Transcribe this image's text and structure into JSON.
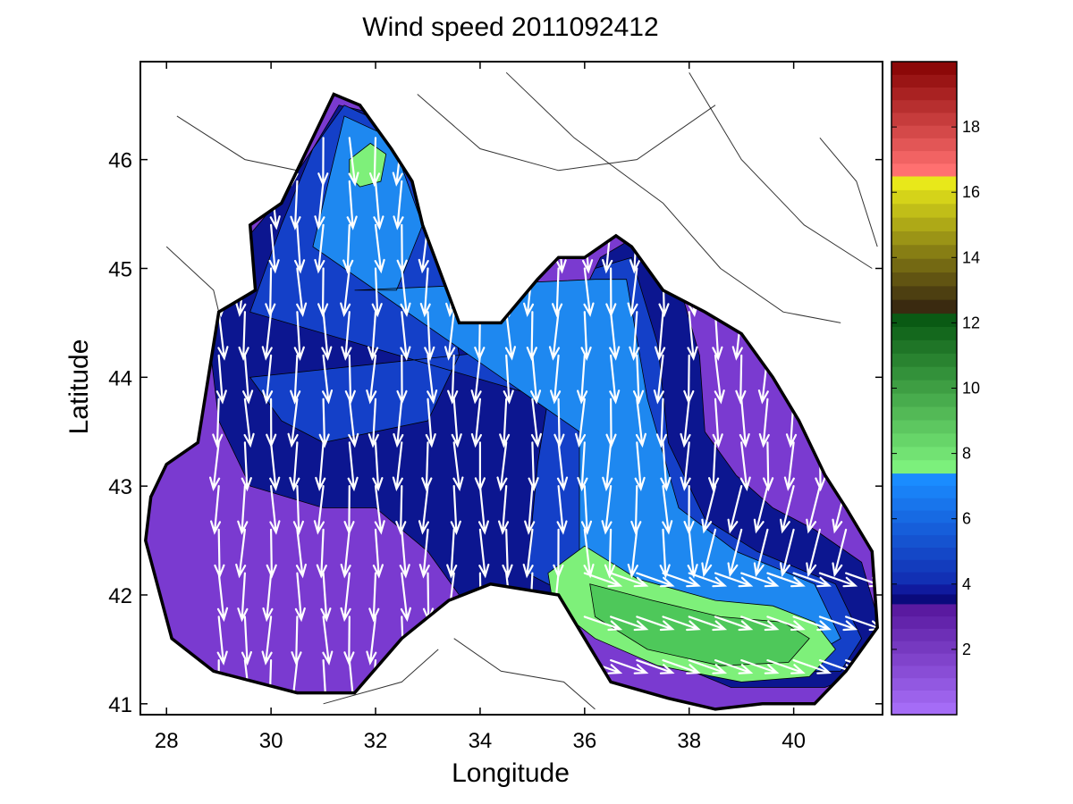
{
  "chart_data": {
    "type": "heatmap",
    "title": "Wind speed 2011092412",
    "xlabel": "Longitude",
    "ylabel": "Latitude",
    "xlim": [
      27.5,
      41.7
    ],
    "ylim": [
      40.9,
      46.9
    ],
    "xticks": [
      28,
      30,
      32,
      34,
      36,
      38,
      40
    ],
    "yticks": [
      41,
      42,
      43,
      44,
      45,
      46
    ],
    "colorbar": {
      "range": [
        0,
        20
      ],
      "ticks": [
        2,
        4,
        6,
        8,
        10,
        12,
        14,
        16,
        18
      ],
      "segments": [
        {
          "from": 0,
          "to": 3.4,
          "from_color": "#a56cf6",
          "to_color": "#5a1aa0"
        },
        {
          "from": 3.4,
          "to": 4.0,
          "from_color": "#0a0a7c",
          "to_color": "#101a9e"
        },
        {
          "from": 4.0,
          "to": 7.4,
          "from_color": "#1230b4",
          "to_color": "#1a8cff"
        },
        {
          "from": 7.4,
          "to": 12.3,
          "from_color": "#7cf07c",
          "to_color": "#0a5a14"
        },
        {
          "from": 12.3,
          "to": 16.5,
          "from_color": "#3a2a10",
          "to_color": "#e8e81a"
        },
        {
          "from": 16.5,
          "to": 20,
          "from_color": "#ff7070",
          "to_color": "#8c0808"
        }
      ]
    },
    "speed_regions": [
      {
        "name": "purple",
        "color": "#7a3ad0",
        "polygon": [
          [
            27.6,
            42.5
          ],
          [
            28.1,
            41.6
          ],
          [
            28.9,
            41.3
          ],
          [
            30.5,
            41.1
          ],
          [
            31.6,
            41.1
          ],
          [
            32.5,
            41.6
          ],
          [
            33.4,
            41.95
          ],
          [
            34.2,
            42.1
          ],
          [
            35.5,
            42.0
          ],
          [
            36.5,
            41.2
          ],
          [
            37.6,
            41.05
          ],
          [
            38.5,
            40.95
          ],
          [
            39.4,
            41.0
          ],
          [
            40.4,
            41.0
          ],
          [
            41.0,
            41.3
          ],
          [
            41.6,
            41.7
          ],
          [
            41.5,
            42.4
          ],
          [
            41.0,
            42.8
          ],
          [
            40.6,
            43.1
          ],
          [
            40.1,
            43.6
          ],
          [
            39.6,
            44.0
          ],
          [
            39.0,
            44.4
          ],
          [
            38.3,
            44.6
          ],
          [
            37.5,
            44.8
          ],
          [
            36.9,
            45.2
          ],
          [
            36.6,
            45.3
          ],
          [
            36.0,
            45.1
          ],
          [
            35.5,
            45.1
          ],
          [
            35.1,
            44.9
          ],
          [
            34.4,
            44.5
          ],
          [
            33.6,
            44.5
          ],
          [
            32.9,
            45.4
          ],
          [
            32.7,
            45.8
          ],
          [
            32.3,
            46.1
          ],
          [
            31.7,
            46.5
          ],
          [
            31.2,
            46.6
          ],
          [
            30.6,
            46.0
          ],
          [
            30.2,
            45.6
          ],
          [
            29.6,
            45.4
          ],
          [
            29.7,
            44.8
          ],
          [
            29.0,
            44.6
          ],
          [
            28.8,
            44.0
          ],
          [
            28.6,
            43.4
          ],
          [
            28.0,
            43.2
          ],
          [
            27.7,
            42.9
          ]
        ]
      },
      {
        "name": "navy",
        "color": "#0c1690",
        "polygon": [
          [
            28.8,
            44.4
          ],
          [
            29.4,
            45.2
          ],
          [
            30.1,
            45.6
          ],
          [
            30.8,
            46.1
          ],
          [
            31.3,
            46.5
          ],
          [
            32.2,
            46.4
          ],
          [
            33.4,
            45.9
          ],
          [
            33.6,
            45.0
          ],
          [
            34.2,
            44.3
          ],
          [
            34.6,
            44.0
          ],
          [
            35.3,
            43.9
          ],
          [
            35.8,
            44.6
          ],
          [
            36.3,
            45.1
          ],
          [
            37.0,
            45.3
          ],
          [
            37.9,
            44.7
          ],
          [
            38.2,
            44.2
          ],
          [
            38.3,
            43.5
          ],
          [
            38.9,
            43.1
          ],
          [
            39.6,
            42.8
          ],
          [
            40.4,
            42.6
          ],
          [
            41.3,
            42.3
          ],
          [
            41.6,
            41.8
          ],
          [
            41.4,
            41.3
          ],
          [
            40.6,
            41.15
          ],
          [
            38.8,
            41.15
          ],
          [
            37.3,
            41.45
          ],
          [
            35.8,
            41.9
          ],
          [
            34.6,
            42.0
          ],
          [
            33.6,
            42.0
          ],
          [
            33.0,
            42.4
          ],
          [
            32.0,
            42.8
          ],
          [
            31.0,
            42.8
          ],
          [
            29.6,
            43.0
          ],
          [
            29.0,
            43.6
          ]
        ]
      },
      {
        "name": "blue",
        "color": "#1440c8",
        "polygon": [
          [
            29.6,
            44.6
          ],
          [
            30.2,
            45.4
          ],
          [
            30.8,
            46.1
          ],
          [
            31.4,
            46.5
          ],
          [
            32.3,
            46.3
          ],
          [
            33.2,
            45.5
          ],
          [
            33.4,
            44.8
          ],
          [
            33.6,
            44.2
          ],
          [
            33.0,
            43.6
          ],
          [
            32.0,
            43.5
          ],
          [
            31.0,
            43.4
          ],
          [
            30.2,
            43.6
          ],
          [
            29.6,
            44.0
          ],
          [
            35.5,
            44.3
          ],
          [
            36.2,
            45.0
          ],
          [
            36.9,
            45.1
          ],
          [
            37.4,
            44.3
          ],
          [
            37.6,
            43.4
          ],
          [
            38.3,
            42.7
          ],
          [
            39.3,
            42.4
          ],
          [
            40.8,
            42.1
          ],
          [
            41.3,
            41.6
          ],
          [
            40.9,
            41.3
          ],
          [
            39.2,
            41.3
          ],
          [
            37.5,
            41.55
          ],
          [
            35.9,
            41.95
          ],
          [
            34.9,
            42.2
          ],
          [
            35.1,
            43.2
          ],
          [
            35.3,
            43.8
          ]
        ]
      },
      {
        "name": "light-blue",
        "color": "#1e88f0",
        "polygon": [
          [
            30.8,
            45.2
          ],
          [
            31.4,
            46.4
          ],
          [
            32.3,
            46.2
          ],
          [
            32.9,
            45.4
          ],
          [
            32.4,
            44.8
          ],
          [
            31.6,
            44.8
          ],
          [
            36.2,
            44.9
          ],
          [
            36.8,
            44.9
          ],
          [
            37.2,
            43.8
          ],
          [
            37.8,
            42.8
          ],
          [
            38.9,
            42.4
          ],
          [
            40.4,
            42.1
          ],
          [
            40.9,
            41.6
          ],
          [
            40.0,
            41.35
          ],
          [
            38.2,
            41.45
          ],
          [
            36.4,
            41.9
          ],
          [
            35.9,
            42.3
          ],
          [
            35.9,
            43.5
          ]
        ]
      },
      {
        "name": "green",
        "color": "#7ef07a",
        "polygon": [
          [
            35.3,
            42.2
          ],
          [
            36.0,
            42.45
          ],
          [
            37.0,
            42.15
          ],
          [
            38.5,
            41.95
          ],
          [
            39.6,
            41.9
          ],
          [
            40.4,
            41.75
          ],
          [
            40.8,
            41.5
          ],
          [
            40.3,
            41.25
          ],
          [
            39.0,
            41.2
          ],
          [
            37.4,
            41.35
          ],
          [
            36.2,
            41.6
          ],
          [
            35.4,
            41.9
          ]
        ]
      },
      {
        "name": "green-core",
        "color": "#4ec85a",
        "polygon": [
          [
            36.1,
            42.1
          ],
          [
            37.3,
            41.95
          ],
          [
            38.6,
            41.8
          ],
          [
            39.8,
            41.75
          ],
          [
            40.3,
            41.6
          ],
          [
            39.9,
            41.38
          ],
          [
            38.6,
            41.35
          ],
          [
            37.2,
            41.5
          ],
          [
            36.2,
            41.8
          ]
        ]
      },
      {
        "name": "green-north",
        "color": "#7ef07a",
        "polygon": [
          [
            31.5,
            46.0
          ],
          [
            31.9,
            46.15
          ],
          [
            32.2,
            46.05
          ],
          [
            32.1,
            45.8
          ],
          [
            31.7,
            45.75
          ],
          [
            31.5,
            45.85
          ]
        ]
      }
    ],
    "wind_vectors": {
      "note": "predominantly northerly flow, turning easterly-to-westward along the southeast coast",
      "x": [
        29.0,
        29.5,
        30.0,
        30.5,
        31.0,
        31.5,
        32.0,
        32.5,
        33.0,
        33.5,
        34.0,
        34.5,
        35.0,
        35.5,
        36.0,
        36.5,
        37.0,
        37.5,
        38.0,
        38.5,
        39.0,
        39.5,
        40.0,
        40.5,
        41.0
      ],
      "y": [
        41.4,
        41.8,
        42.2,
        42.6,
        43.0,
        43.4,
        43.8,
        44.2,
        44.6,
        45.0,
        45.4,
        45.8,
        46.2
      ]
    }
  }
}
